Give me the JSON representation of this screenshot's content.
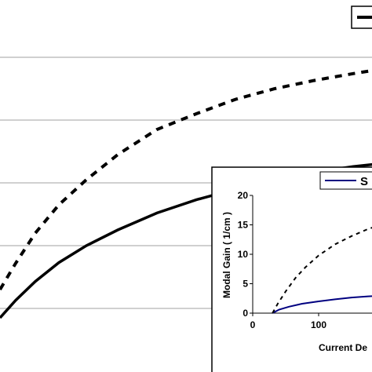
{
  "chart_data": [
    {
      "type": "line",
      "role": "main",
      "grid": true,
      "legend_placement": "top-right",
      "series": [
        {
          "style": "dashed",
          "color": "#000000",
          "x": [
            0,
            0.2,
            0.45,
            0.75,
            1.1,
            1.5,
            2.0,
            2.5,
            3.0,
            3.5,
            4.0,
            4.5,
            4.8
          ],
          "values": [
            1.3,
            1.72,
            2.2,
            2.65,
            3.05,
            3.45,
            3.85,
            4.1,
            4.33,
            4.5,
            4.63,
            4.74,
            4.8
          ]
        },
        {
          "style": "solid",
          "color": "#000000",
          "x": [
            0,
            0.2,
            0.45,
            0.75,
            1.1,
            1.5,
            2.0,
            2.5,
            3.0,
            3.5,
            4.0,
            4.5,
            4.8
          ],
          "values": [
            0.85,
            1.13,
            1.43,
            1.73,
            2.0,
            2.25,
            2.52,
            2.73,
            2.9,
            3.05,
            3.17,
            3.26,
            3.3
          ]
        }
      ]
    },
    {
      "type": "line",
      "role": "inset",
      "xlabel": "Current De",
      "ylabel": "Modal Gain ( 1/cm )",
      "x_ticks": [
        "0",
        "100"
      ],
      "y_ticks": [
        "0",
        "5",
        "10",
        "15",
        "20"
      ],
      "ylim": [
        0,
        20
      ],
      "xlim": [
        0,
        215
      ],
      "legend": {
        "label": "S",
        "color": "#000080",
        "placement": "top-right"
      },
      "series": [
        {
          "name": "S",
          "style": "solid",
          "color": "#000080",
          "x": [
            30,
            40,
            55,
            75,
            100,
            125,
            150,
            175,
            200,
            215
          ],
          "values": [
            0,
            0.6,
            1.1,
            1.6,
            2.0,
            2.35,
            2.65,
            2.85,
            3.0,
            3.1
          ]
        },
        {
          "style": "dashed",
          "color": "#000000",
          "x": [
            30,
            38,
            50,
            65,
            80,
            100,
            125,
            150,
            175,
            200,
            215
          ],
          "values": [
            0,
            1.6,
            3.7,
            6.0,
            7.8,
            9.8,
            11.7,
            13.1,
            14.3,
            15.2,
            15.8
          ]
        }
      ]
    }
  ]
}
